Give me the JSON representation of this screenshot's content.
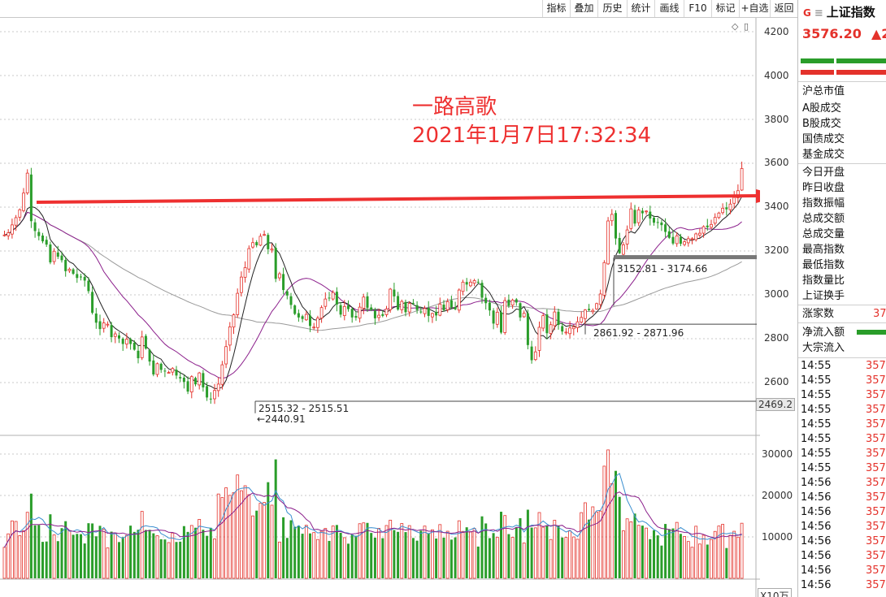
{
  "toolbar": {
    "buttons": [
      "指标",
      "叠加",
      "历史",
      "统计",
      "画线",
      "F10",
      "标记",
      "+自选",
      "返回"
    ]
  },
  "annotation": {
    "title": "一路高歌",
    "datetime": "2021年1月7日17:32:34"
  },
  "price_axis": {
    "labels": [
      "4200",
      "4000",
      "3800",
      "3600",
      "3400",
      "3200",
      "3000",
      "2800",
      "2600"
    ],
    "current_marker": "2469.2"
  },
  "volume_axis": {
    "labels": [
      "30000",
      "20000",
      "10000"
    ],
    "unit": "X10万"
  },
  "chart_notes": {
    "range1": "3152.81 - 3174.66",
    "range2": "2861.92 - 2871.96",
    "range3": "2515.32 - 2515.51",
    "low": "←2440.91"
  },
  "sidebar": {
    "badge": "G",
    "name": "上证指数",
    "price": "3576.20",
    "change": "▲2",
    "labels": [
      "沪总市值",
      "A股成交",
      "B股成交",
      "国债成交",
      "基金成交",
      "今日开盘",
      "昨日收盘",
      "指数振幅",
      "总成交额",
      "总成交量",
      "最高指数",
      "最低指数",
      "指数量比",
      "上证换手"
    ],
    "rise_count_label": "涨家数",
    "rise_count_value": "37",
    "flow_labels": [
      "净流入额",
      "大宗流入"
    ],
    "ticks": [
      {
        "time": "14:55",
        "price": "357"
      },
      {
        "time": "14:55",
        "price": "357"
      },
      {
        "time": "14:55",
        "price": "357"
      },
      {
        "time": "14:55",
        "price": "357"
      },
      {
        "time": "14:55",
        "price": "357"
      },
      {
        "time": "14:55",
        "price": "357"
      },
      {
        "time": "14:55",
        "price": "357"
      },
      {
        "time": "14:55",
        "price": "357"
      },
      {
        "time": "14:56",
        "price": "357"
      },
      {
        "time": "14:56",
        "price": "357"
      },
      {
        "time": "14:56",
        "price": "357"
      },
      {
        "time": "14:56",
        "price": "357"
      },
      {
        "time": "14:56",
        "price": "357"
      },
      {
        "time": "14:56",
        "price": "357"
      },
      {
        "time": "14:56",
        "price": "357"
      },
      {
        "time": "14:56",
        "price": "357"
      }
    ]
  },
  "colors": {
    "up": "#e4322b",
    "down": "#2a9d2a",
    "ma5": "#222222",
    "ma10": "#8b1e8b",
    "ma20": "#9a9a9a",
    "vol_ma5": "#3a8fd0",
    "vol_ma10": "#8b1e8b",
    "arrow": "#ee3030",
    "grid": "#c8c8c8"
  },
  "chart_data": {
    "type": "candlestick",
    "price_range": [
      2400,
      4270
    ],
    "volume_range": [
      0,
      33000
    ],
    "price_series": [
      3273,
      3283,
      3319,
      3352,
      3388,
      3464,
      3555,
      3336,
      3291,
      3268,
      3244,
      3229,
      3148,
      3199,
      3174,
      3158,
      3108,
      3117,
      3096,
      3077,
      3082,
      3065,
      3017,
      2918,
      2873,
      2844,
      2872,
      2866,
      2807,
      2822,
      2801,
      2776,
      2798,
      2776,
      2750,
      2711,
      2808,
      2755,
      2696,
      2637,
      2686,
      2658,
      2651,
      2646,
      2664,
      2632,
      2619,
      2603,
      2559,
      2627,
      2592,
      2644,
      2578,
      2532,
      2526,
      2564,
      2593,
      2681,
      2764,
      2854,
      2909,
      3007,
      3081,
      3124,
      3211,
      3238,
      3226,
      3267,
      3275,
      3208,
      3209,
      3073,
      3096,
      3022,
      2997,
      2954,
      2913,
      2897,
      2890,
      2911,
      2858,
      2853,
      2894,
      2942,
      2981,
      2987,
      3011,
      2956,
      2910,
      2947,
      2935,
      2897,
      2896,
      2944,
      2990,
      2941,
      2932,
      2893,
      2907,
      2904,
      2936,
      3026,
      2993,
      2933,
      2970,
      2921,
      2961,
      2960,
      2931,
      2920,
      2938,
      2904,
      2915,
      2906,
      2958,
      2930,
      2969,
      2942,
      2934,
      3022,
      3058,
      3047,
      3058,
      3065,
      3056,
      2987,
      2962,
      2929,
      2869,
      2921,
      2828,
      2974,
      2950,
      2976,
      2965,
      2897,
      2916,
      2771,
      2702,
      2740,
      2852,
      2905,
      2825,
      2864,
      2922,
      2863,
      2833,
      2830,
      2849,
      2854,
      2877,
      2897,
      2931,
      2930,
      2929,
      2960,
      3004,
      3147,
      3337,
      3367,
      3257,
      3190,
      3228,
      3296,
      3392,
      3325,
      3387,
      3372,
      3382,
      3348,
      3329,
      3329,
      3318,
      3287,
      3260,
      3234,
      3269,
      3233,
      3242,
      3256,
      3256,
      3278,
      3281,
      3311,
      3308,
      3321,
      3353,
      3373,
      3395,
      3390,
      3414,
      3444,
      3475,
      3576
    ]
  }
}
